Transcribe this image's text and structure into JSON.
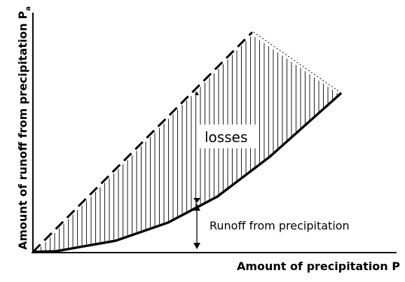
{
  "diagram": {
    "y_axis_label": "Amount of runoff from precipitation P",
    "y_axis_subscript": "a",
    "x_axis_label": "Amount of precipitation P",
    "losses_label": "losses",
    "runoff_label": "Runoff from precipitation"
  }
}
